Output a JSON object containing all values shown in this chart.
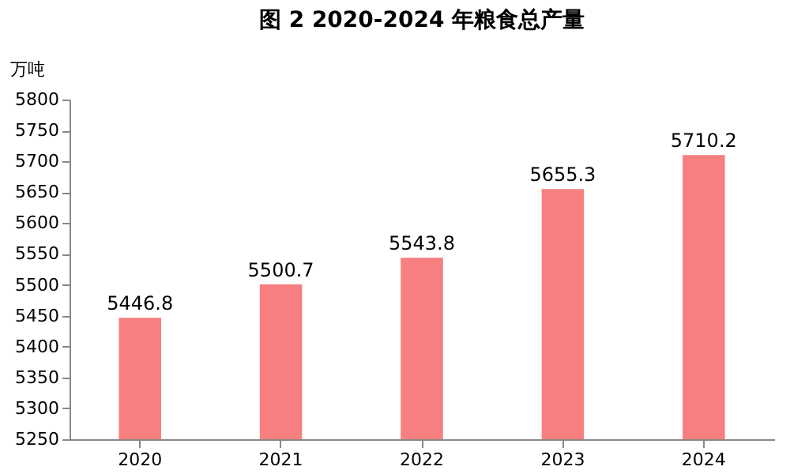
{
  "chart_data": {
    "type": "bar",
    "title": "图 2 2020-2024 年粮食总产量",
    "ylabel": "万吨",
    "categories": [
      "2020",
      "2021",
      "2022",
      "2023",
      "2024"
    ],
    "values": [
      5446.8,
      5500.7,
      5543.8,
      5655.3,
      5710.2
    ],
    "color": "#f77f7f",
    "ylim": [
      5250,
      5800
    ],
    "yticks": [
      5250,
      5300,
      5350,
      5400,
      5450,
      5500,
      5550,
      5600,
      5650,
      5700,
      5750,
      5800
    ],
    "data_labels": true,
    "grid": false
  }
}
